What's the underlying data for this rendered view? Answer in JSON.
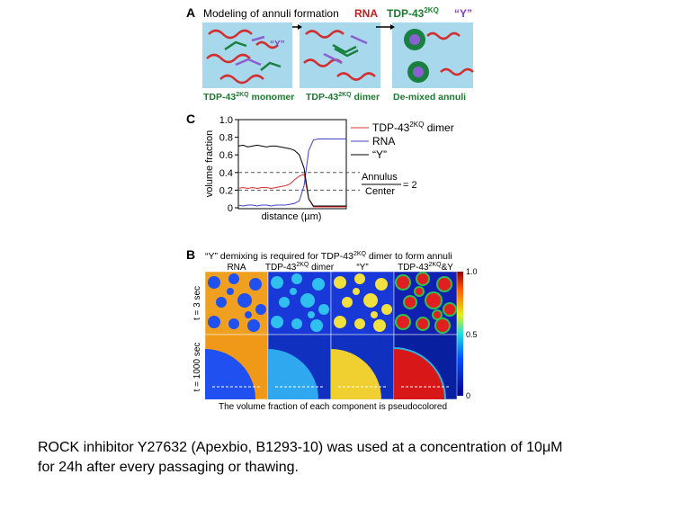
{
  "panel_a": {
    "letter": "A",
    "title": "Modeling of annuli formation",
    "rna": "RNA",
    "tdp": {
      "base": "TDP-43",
      "sup": "2KQ"
    },
    "y_label": "“Y”",
    "box_y": "“Y”",
    "captions": [
      {
        "base": "TDP-43",
        "sup": "2KQ",
        "rest": " monomer"
      },
      {
        "base": "TDP-43",
        "sup": "2KQ",
        "rest": " dimer"
      },
      {
        "base": "De-mixed annuli"
      }
    ]
  },
  "chart_data": {
    "type": "line",
    "letter": "C",
    "y_label": "volume fraction",
    "x_label": "distance (µm)",
    "ylim": [
      0,
      1
    ],
    "yticks": [
      0,
      0.2,
      0.4,
      0.6,
      0.8,
      {
        "value": 1,
        "label": "1.0"
      }
    ],
    "series": [
      {
        "name": "TDP-43",
        "sup": "2KQ",
        "suffix": " dimer",
        "color": "#d83030",
        "values": [
          0.22,
          0.23,
          0.22,
          0.23,
          0.22,
          0.23,
          0.23,
          0.22,
          0.23,
          0.24,
          0.25,
          0.27,
          0.32,
          0.36,
          0.38,
          0.1,
          0.01,
          0.01,
          0.01,
          0.01,
          0.01,
          0.01,
          0.01,
          0.01
        ]
      },
      {
        "name": "RNA",
        "color": "#4040c8",
        "values": [
          0.03,
          0.02,
          0.03,
          0.03,
          0.02,
          0.03,
          0.03,
          0.02,
          0.03,
          0.03,
          0.03,
          0.04,
          0.05,
          0.08,
          0.25,
          0.65,
          0.77,
          0.78,
          0.78,
          0.78,
          0.78,
          0.78,
          0.78,
          0.78
        ]
      },
      {
        "name": "“Y”",
        "color": "#000000",
        "values": [
          0.7,
          0.71,
          0.69,
          0.7,
          0.71,
          0.7,
          0.69,
          0.7,
          0.7,
          0.69,
          0.68,
          0.67,
          0.65,
          0.6,
          0.45,
          0.1,
          0.02,
          0.02,
          0.02,
          0.02,
          0.02,
          0.02,
          0.02,
          0.02
        ]
      }
    ],
    "reference_lines": [
      0.4,
      0.2
    ],
    "annotation": {
      "numerator": "Annulus",
      "denominator": "Center",
      "equals": "= 2"
    }
  },
  "panel_b": {
    "letter": "B",
    "title": {
      "base": "“Y” demixing is required for TDP-43",
      "sup": "2KQ",
      "rest": " dimer to form annuli"
    },
    "columns": [
      {
        "base": "RNA"
      },
      {
        "base": "TDP-43",
        "sup": "2KQ",
        "rest": " dimer"
      },
      {
        "base": "“Y”"
      },
      {
        "base": "TDP-43",
        "sup": "2KQ",
        "rest": "&Y"
      }
    ],
    "rows": [
      "t = 3 sec",
      "t = 1000 sec"
    ],
    "colorbar_labels": [
      "1.0",
      "0.5",
      "0"
    ],
    "footnote": "The volume fraction of each component is pseudocolored"
  },
  "caption": {
    "lines": [
      "ROCK inhibitor Y27632 (Apexbio, B1293-10) was used at a concentration of 10μM",
      "for 24h after every passaging or thawing."
    ]
  }
}
